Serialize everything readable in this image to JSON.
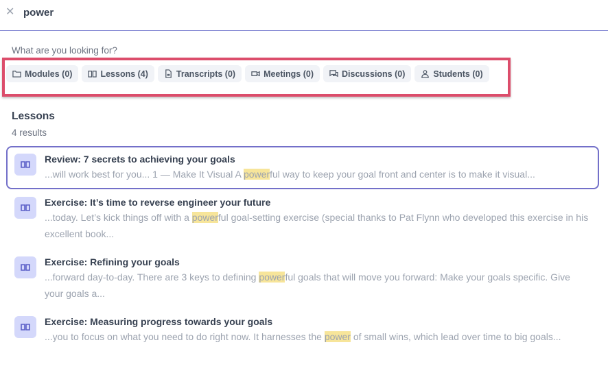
{
  "search": {
    "value": "power",
    "close_icon": "x-icon"
  },
  "prompt": "What are you looking for?",
  "filters": [
    {
      "label": "Modules (0)",
      "icon": "folder-icon"
    },
    {
      "label": "Lessons (4)",
      "icon": "book-icon"
    },
    {
      "label": "Transcripts (0)",
      "icon": "document-icon"
    },
    {
      "label": "Meetings (0)",
      "icon": "video-icon"
    },
    {
      "label": "Discussions (0)",
      "icon": "chat-icon"
    },
    {
      "label": "Students (0)",
      "icon": "user-icon"
    }
  ],
  "section": {
    "title": "Lessons",
    "count": "4 results"
  },
  "colors": {
    "highlight": "#f7e59a",
    "accent": "#7370c9",
    "annotation": "#dc4d6b"
  },
  "results": [
    {
      "title": "Review: 7 secrets to achieving your goals",
      "pre": "...will work best for you... 1 — Make It Visual A ",
      "match": "power",
      "post": "ful way to keep your goal front and center is to make it visual..."
    },
    {
      "title": "Exercise: It’s time to reverse engineer your future",
      "pre": "...today. Let’s kick things off with a ",
      "match": "power",
      "post": "ful goal-setting exercise (special thanks to Pat Flynn who developed this exercise in his excellent book..."
    },
    {
      "title": "Exercise: Refining your goals",
      "pre": "...forward day-to-day. There are 3 keys to defining ",
      "match": "power",
      "post": "ful goals that will move you forward: Make your goals specific. Give your goals a..."
    },
    {
      "title": "Exercise: Measuring progress towards your goals",
      "pre": "...you to focus on what you need to do right now. It harnesses the ",
      "match": "power",
      "post": " of small wins, which lead over time to big goals..."
    }
  ]
}
